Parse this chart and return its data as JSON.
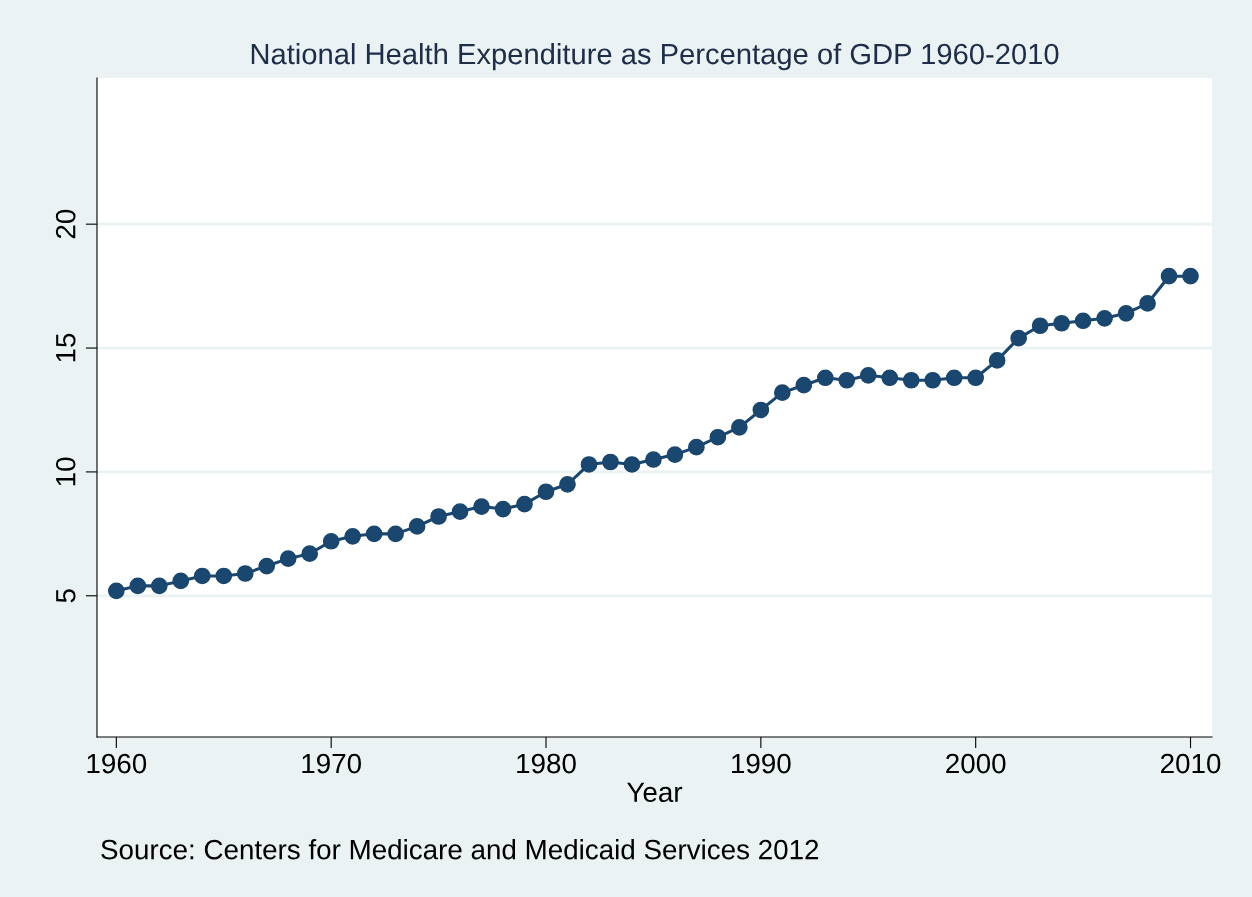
{
  "chart_data": {
    "type": "line",
    "title": "National Health Expenditure as Percentage of GDP 1960-2010",
    "xlabel": "Year",
    "annotations": [
      "Source: Centers for Medicare and Medicaid Services 2012"
    ],
    "x": [
      1960,
      1961,
      1962,
      1963,
      1964,
      1965,
      1966,
      1967,
      1968,
      1969,
      1970,
      1971,
      1972,
      1973,
      1974,
      1975,
      1976,
      1977,
      1978,
      1979,
      1980,
      1981,
      1982,
      1983,
      1984,
      1985,
      1986,
      1987,
      1988,
      1989,
      1990,
      1991,
      1992,
      1993,
      1994,
      1995,
      1996,
      1997,
      1998,
      1999,
      2000,
      2001,
      2002,
      2003,
      2004,
      2005,
      2006,
      2007,
      2008,
      2009,
      2010
    ],
    "series": [
      {
        "color": "#1a476f",
        "values": [
          5.2,
          5.4,
          5.4,
          5.6,
          5.8,
          5.8,
          5.9,
          6.2,
          6.5,
          6.7,
          7.2,
          7.4,
          7.5,
          7.5,
          7.8,
          8.2,
          8.4,
          8.6,
          8.5,
          8.7,
          9.2,
          9.5,
          10.3,
          10.4,
          10.3,
          10.5,
          10.7,
          11.0,
          11.4,
          11.8,
          12.5,
          13.2,
          13.5,
          13.8,
          13.7,
          13.9,
          13.8,
          13.7,
          13.7,
          13.8,
          13.8,
          14.5,
          15.4,
          15.9,
          16.0,
          16.1,
          16.2,
          16.4,
          16.8,
          17.9,
          17.9
        ]
      }
    ],
    "xlim": [
      1959.1,
      2011.0
    ],
    "ylim": [
      -0.7,
      25.9
    ],
    "xticks": [
      1960,
      1970,
      1980,
      1990,
      2000,
      2010
    ],
    "yticks": [
      5,
      10,
      15,
      20
    ],
    "grid": "y",
    "marker": "circle",
    "line_style": "solid",
    "legend": false
  }
}
